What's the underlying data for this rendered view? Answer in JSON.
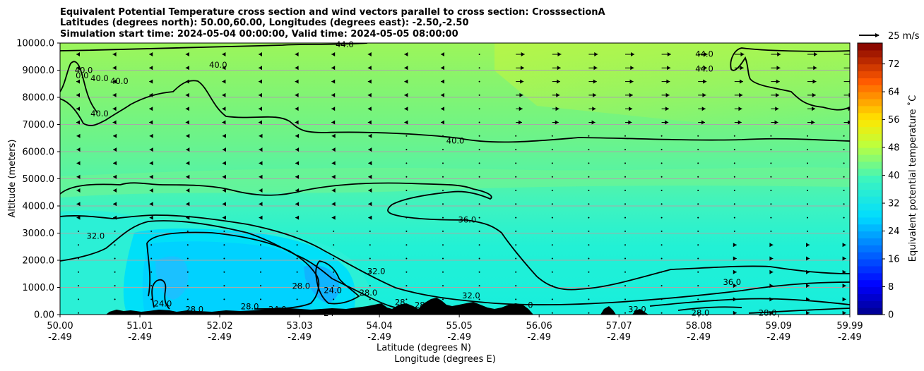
{
  "chart_data": {
    "type": "heatmap",
    "title_lines": [
      "Equivalent Potential Temperature cross section and wind vectors parallel to cross section: CrosssectionA",
      "Latitudes (degrees north): 50.00,60.00, Longitudes (degrees east): -2.50,-2.50",
      "Simulation start time: 2024-05-04 00:00:00, Valid time: 2024-05-05 08:00:00"
    ],
    "xlabel_lines": [
      "Latitude (degrees N)",
      "Longitude (degrees E)"
    ],
    "ylabel": "Altitude (meters)",
    "x_range": [
      50.0,
      59.99
    ],
    "ylim": [
      0,
      10000
    ],
    "y_ticks": [
      0,
      1000,
      2000,
      3000,
      4000,
      5000,
      6000,
      7000,
      8000,
      9000,
      10000
    ],
    "y_tick_labels": [
      "0.00",
      "1000.0",
      "2000.0",
      "3000.0",
      "4000.0",
      "5000.0",
      "6000.0",
      "7000.0",
      "8000.0",
      "9000.0",
      "10000.0"
    ],
    "x_ticks": [
      50.0,
      51.01,
      52.02,
      53.03,
      54.04,
      55.05,
      56.06,
      57.07,
      58.08,
      59.09,
      59.99
    ],
    "x_tick_labels": [
      "50.00",
      "51.01",
      "52.02",
      "53.03",
      "54.04",
      "55.05",
      "56.06",
      "57.07",
      "58.08",
      "59.09",
      "59.99"
    ],
    "x_tick_labels_lon": [
      "-2.49",
      "-2.49",
      "-2.49",
      "-2.49",
      "-2.49",
      "-2.49",
      "-2.49",
      "-2.49",
      "-2.49",
      "-2.49",
      "-2.49"
    ],
    "horizontal_grid": true,
    "colorbar": {
      "label": "Equivalent potential temperature ˚C",
      "range": [
        0,
        78
      ],
      "ticks": [
        0,
        8,
        16,
        24,
        32,
        40,
        48,
        56,
        64,
        72
      ],
      "tick_labels": [
        "0",
        "8",
        "16",
        "24",
        "32",
        "40",
        "48",
        "56",
        "64",
        "72"
      ]
    },
    "wind_key": "25 m/s",
    "contour_levels": [
      24.0,
      28.0,
      32.0,
      36.0,
      40.0,
      44.0
    ],
    "contour_labels": [
      {
        "text": "44.0",
        "lat": 53.6,
        "alt": 9950
      },
      {
        "text": "40.0",
        "lat": 52.0,
        "alt": 9200
      },
      {
        "text": "40.0",
        "lat": 50.3,
        "alt": 9000
      },
      {
        "text": "40.0",
        "lat": 50.5,
        "alt": 8700
      },
      {
        "text": "40.0",
        "lat": 50.75,
        "alt": 8600
      },
      {
        "text": "0.0",
        "lat": 50.28,
        "alt": 8800
      },
      {
        "text": "40.0",
        "lat": 50.5,
        "alt": 7400
      },
      {
        "text": "40.0",
        "lat": 55.0,
        "alt": 6400
      },
      {
        "text": "44.0",
        "lat": 58.15,
        "alt": 9600
      },
      {
        "text": "44.0",
        "lat": 58.15,
        "alt": 9050
      },
      {
        "text": "36.0",
        "lat": 55.15,
        "alt": 3500
      },
      {
        "text": "32.0",
        "lat": 50.45,
        "alt": 2900
      },
      {
        "text": "32.0",
        "lat": 54.0,
        "alt": 1600
      },
      {
        "text": "32.0",
        "lat": 55.2,
        "alt": 700
      },
      {
        "text": "28.0",
        "lat": 53.05,
        "alt": 1050
      },
      {
        "text": "24.0",
        "lat": 53.45,
        "alt": 900
      },
      {
        "text": "28.0",
        "lat": 53.9,
        "alt": 800
      },
      {
        "text": "24.0",
        "lat": 51.3,
        "alt": 400
      },
      {
        "text": "28.0",
        "lat": 51.7,
        "alt": 200
      },
      {
        "text": "28.0",
        "lat": 52.4,
        "alt": 300
      },
      {
        "text": "24.0",
        "lat": 52.75,
        "alt": 200
      },
      {
        "text": "24",
        "lat": 53.4,
        "alt": 50
      },
      {
        "text": "28",
        "lat": 54.3,
        "alt": 450
      },
      {
        "text": "28",
        "lat": 54.55,
        "alt": 350
      },
      {
        "text": "0",
        "lat": 55.95,
        "alt": 350
      },
      {
        "text": "32.0",
        "lat": 57.3,
        "alt": 200
      },
      {
        "text": "28.0",
        "lat": 58.1,
        "alt": 60
      },
      {
        "text": "28.0",
        "lat": 58.95,
        "alt": 60
      },
      {
        "text": "36.0",
        "lat": 58.5,
        "alt": 1200
      }
    ]
  }
}
